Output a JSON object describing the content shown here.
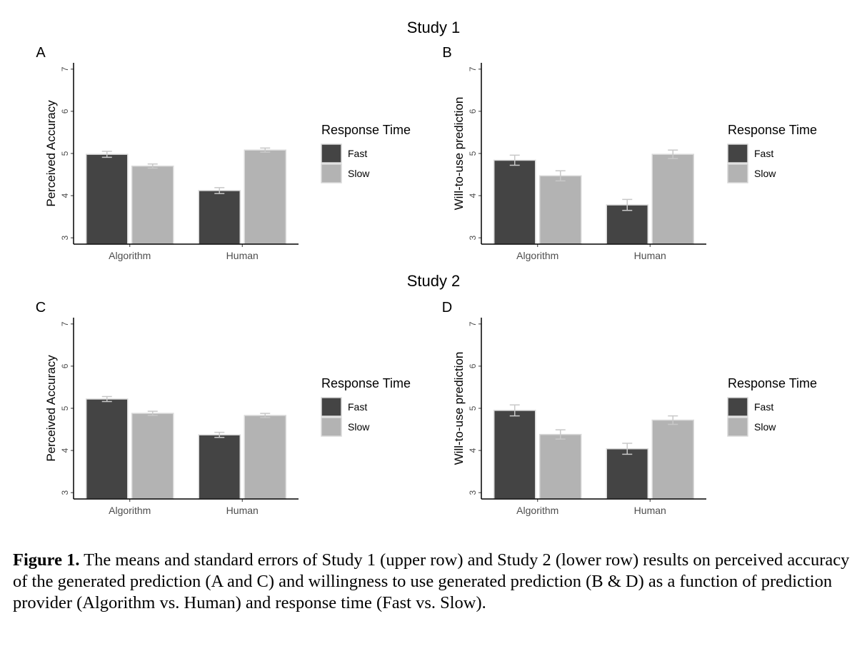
{
  "study_titles": [
    "Study 1",
    "Study 2"
  ],
  "legend": {
    "title": "Response Time",
    "items": [
      {
        "label": "Fast",
        "color": "#444444"
      },
      {
        "label": "Slow",
        "color": "#b3b3b3"
      }
    ]
  },
  "chart_data": [
    {
      "panel": "A",
      "type": "bar",
      "ylabel": "Perceived Accuracy",
      "categories": [
        "Algorithm",
        "Human"
      ],
      "ylim": [
        2.85,
        7.15
      ],
      "yticks": [
        3,
        4,
        5,
        6,
        7
      ],
      "series": [
        {
          "name": "Fast",
          "values": [
            4.98,
            4.12
          ],
          "se": [
            0.07,
            0.07
          ]
        },
        {
          "name": "Slow",
          "values": [
            4.7,
            5.08
          ],
          "se": [
            0.05,
            0.05
          ]
        }
      ]
    },
    {
      "panel": "B",
      "type": "bar",
      "ylabel": "Will-to-use prediction",
      "categories": [
        "Algorithm",
        "Human"
      ],
      "ylim": [
        2.85,
        7.15
      ],
      "yticks": [
        3,
        4,
        5,
        6,
        7
      ],
      "series": [
        {
          "name": "Fast",
          "values": [
            4.84,
            3.78
          ],
          "se": [
            0.12,
            0.13
          ]
        },
        {
          "name": "Slow",
          "values": [
            4.47,
            4.98
          ],
          "se": [
            0.12,
            0.1
          ]
        }
      ]
    },
    {
      "panel": "C",
      "type": "bar",
      "ylabel": "Perceived Accuracy",
      "categories": [
        "Algorithm",
        "Human"
      ],
      "ylim": [
        2.85,
        7.15
      ],
      "yticks": [
        3,
        4,
        5,
        6,
        7
      ],
      "series": [
        {
          "name": "Fast",
          "values": [
            5.22,
            4.37
          ],
          "se": [
            0.06,
            0.06
          ]
        },
        {
          "name": "Slow",
          "values": [
            4.88,
            4.83
          ],
          "se": [
            0.05,
            0.05
          ]
        }
      ]
    },
    {
      "panel": "D",
      "type": "bar",
      "ylabel": "Will-to-use prediction",
      "categories": [
        "Algorithm",
        "Human"
      ],
      "ylim": [
        2.85,
        7.15
      ],
      "yticks": [
        3,
        4,
        5,
        6,
        7
      ],
      "series": [
        {
          "name": "Fast",
          "values": [
            4.95,
            4.04
          ],
          "se": [
            0.13,
            0.13
          ]
        },
        {
          "name": "Slow",
          "values": [
            4.38,
            4.72
          ],
          "se": [
            0.11,
            0.1
          ]
        }
      ]
    }
  ],
  "caption": {
    "label": "Figure 1.",
    "text": " The means and standard errors of Study 1 (upper row) and Study 2 (lower row) results on perceived accuracy of the generated prediction (A and C) and willingness to use generated prediction (B & D) as a function of prediction provider (Algorithm vs. Human) and response time (Fast vs. Slow)."
  }
}
